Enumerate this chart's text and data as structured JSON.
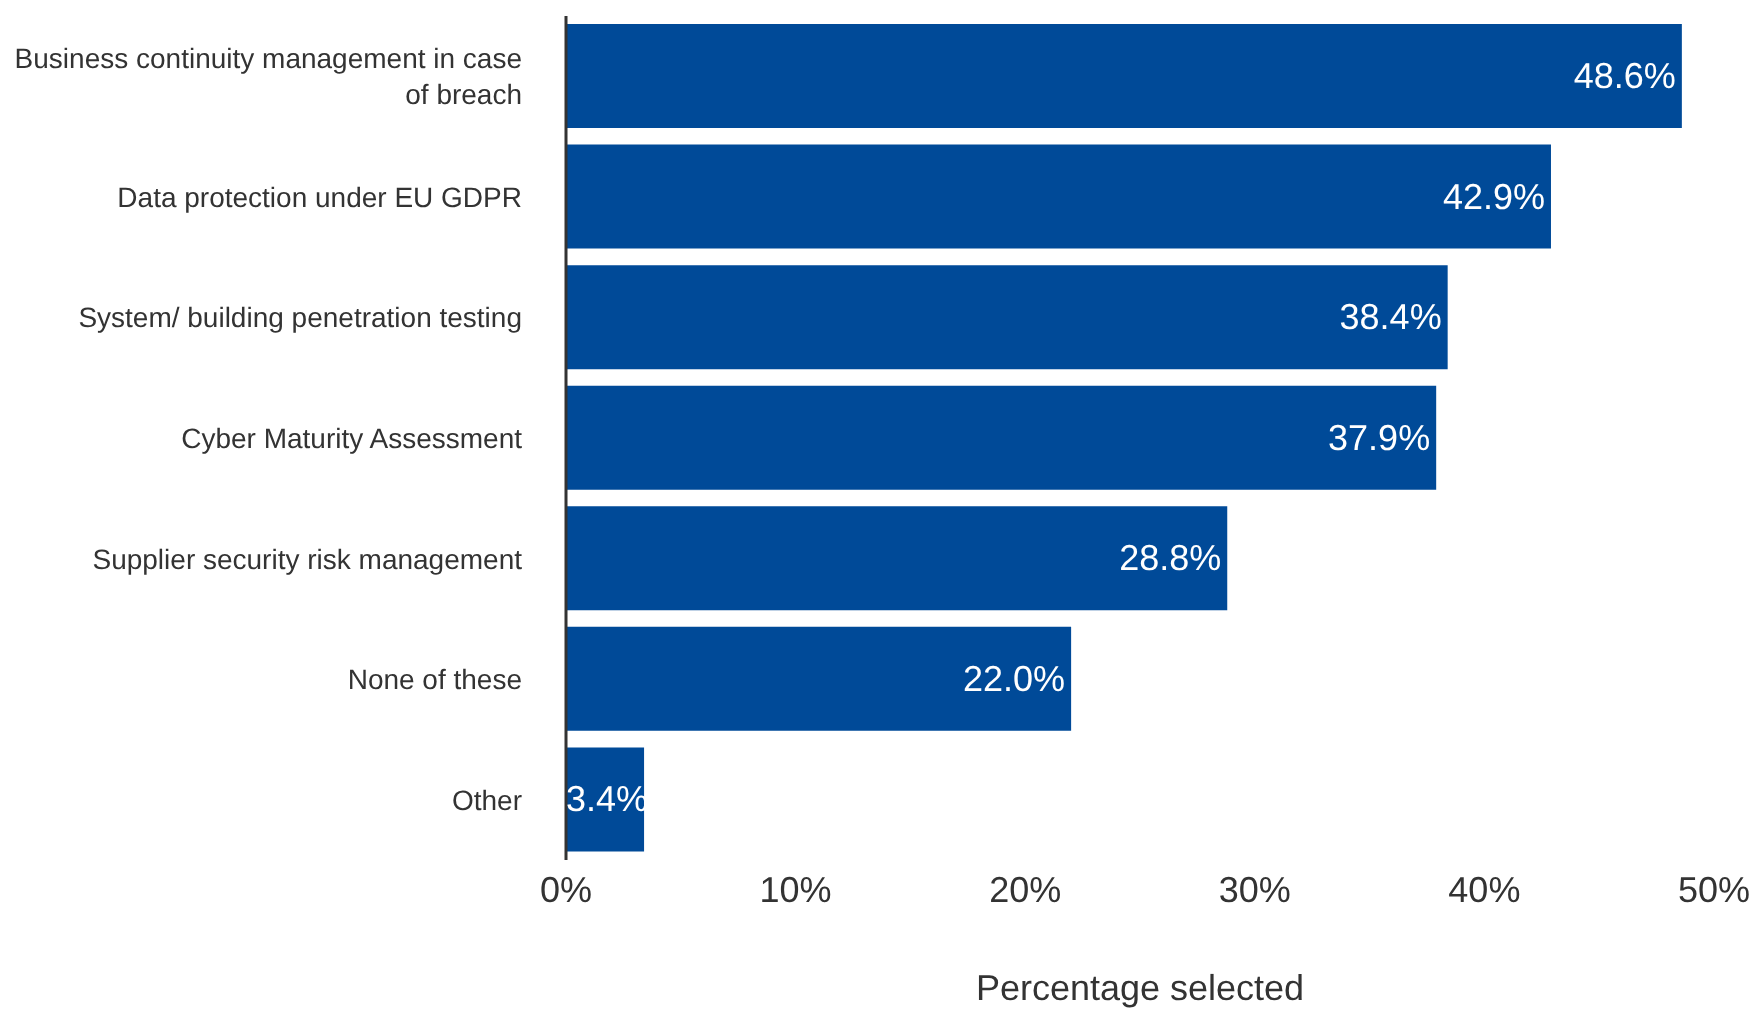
{
  "chart_data": {
    "type": "bar",
    "orientation": "horizontal",
    "xlabel": "Percentage selected",
    "categories": [
      "Business continuity management in case of breach",
      "Data protection under EU GDPR",
      "System/ building penetration testing",
      "Cyber Maturity Assessment",
      "Supplier security risk management",
      "None of these",
      "Other"
    ],
    "values": [
      48.6,
      42.9,
      38.4,
      37.9,
      28.8,
      22.0,
      3.4
    ],
    "value_labels": [
      "48.6%",
      "42.9%",
      "38.4%",
      "37.9%",
      "28.8%",
      "22.0%",
      "3.4%"
    ],
    "color": "#004a98",
    "xlim": [
      0,
      50
    ],
    "xticks": [
      {
        "value": 0,
        "label": "0%"
      },
      {
        "value": 10,
        "label": "10%"
      },
      {
        "value": 20,
        "label": "20%"
      },
      {
        "value": 30,
        "label": "30%"
      },
      {
        "value": 40,
        "label": "40%"
      },
      {
        "value": 50,
        "label": "50%"
      }
    ],
    "grid": false,
    "legend": false
  }
}
